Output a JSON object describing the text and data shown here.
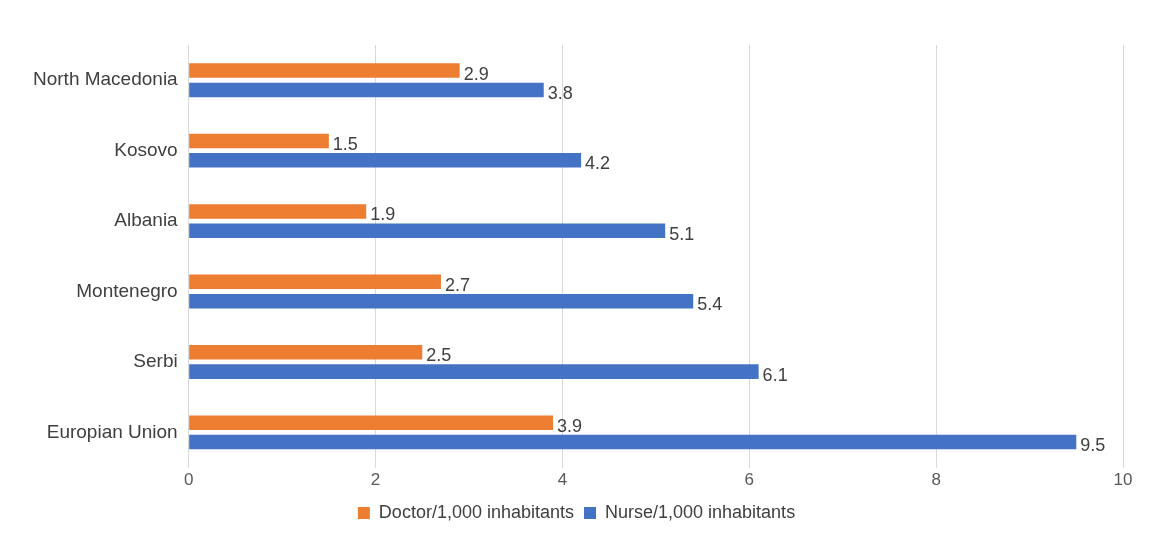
{
  "chart_data": {
    "type": "bar",
    "orientation": "horizontal",
    "categories": [
      "North Macedonia",
      "Kosovo",
      "Albania",
      "Montenegro",
      "Serbi",
      "Europian Union"
    ],
    "series": [
      {
        "name": "Doctor/1,000 inhabitants",
        "color": "#ed7d31",
        "values": [
          2.9,
          1.5,
          1.9,
          2.7,
          2.5,
          3.9
        ]
      },
      {
        "name": "Nurse/1,000 inhabitants",
        "color": "#4472c4",
        "values": [
          3.8,
          4.2,
          5.1,
          5.4,
          6.1,
          9.5
        ]
      }
    ],
    "xlim": [
      0,
      10
    ],
    "xticks": [
      0,
      2,
      4,
      6,
      8,
      10
    ],
    "grid": "x",
    "legend": "bottom",
    "data_labels": true
  }
}
